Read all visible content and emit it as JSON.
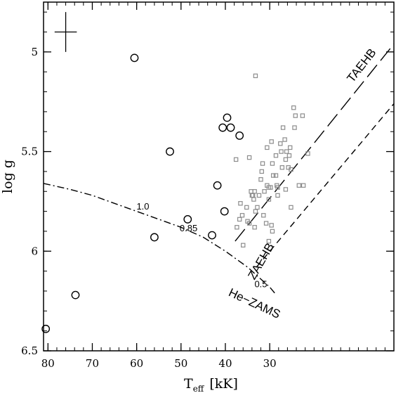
{
  "chart_data": {
    "type": "scatter",
    "title": "",
    "xlabel_main": "T",
    "xlabel_sub": "eff",
    "xlabel_unit": "[kK]",
    "ylabel": "log g",
    "xlim": [
      81,
      2
    ],
    "ylim": [
      6.5,
      4.75
    ],
    "x_ticks": [
      80,
      70,
      60,
      50,
      40,
      30
    ],
    "x_tick_labels": [
      "80",
      "70",
      "60",
      "50",
      "40",
      "30"
    ],
    "y_ticks": [
      5,
      5.5,
      6,
      6.5
    ],
    "y_tick_labels": [
      "5",
      "5.5",
      "6",
      "6.5"
    ],
    "y_minor_step": 0.1,
    "x_minor_step": 2,
    "error_bar": {
      "x": 76,
      "y": 4.9,
      "dx": 2.5,
      "dy": 0.1
    },
    "series": [
      {
        "marker": "open-circle",
        "points": [
          [
            80.5,
            6.39
          ],
          [
            73.8,
            6.22
          ],
          [
            60.5,
            5.03
          ],
          [
            56,
            5.93
          ],
          [
            52.5,
            5.5
          ],
          [
            48.5,
            5.84
          ],
          [
            43,
            5.92
          ],
          [
            41.8,
            5.67
          ],
          [
            40.6,
            5.38
          ],
          [
            40.2,
            5.8
          ],
          [
            39.6,
            5.33
          ],
          [
            38.8,
            5.38
          ],
          [
            36.8,
            5.42
          ]
        ]
      },
      {
        "marker": "open-square",
        "color": "#8c8c8c",
        "points": [
          [
            33.2,
            5.12
          ],
          [
            37.6,
            5.54
          ],
          [
            34.6,
            5.53
          ],
          [
            36,
            5.97
          ],
          [
            34.2,
            5.7
          ],
          [
            34,
            5.72
          ],
          [
            33.8,
            5.72
          ],
          [
            33.6,
            5.74
          ],
          [
            33.4,
            5.7
          ],
          [
            36.6,
            5.76
          ],
          [
            36.2,
            5.82
          ],
          [
            35.2,
            5.78
          ],
          [
            35,
            5.85
          ],
          [
            34.6,
            5.86
          ],
          [
            33.4,
            5.88
          ],
          [
            33.2,
            5.8
          ],
          [
            32.8,
            5.78
          ],
          [
            32.4,
            5.72
          ],
          [
            31.8,
            5.6
          ],
          [
            31.4,
            5.82
          ],
          [
            31.6,
            5.56
          ],
          [
            30.8,
            5.86
          ],
          [
            31.2,
            5.7
          ],
          [
            30.6,
            5.48
          ],
          [
            30.2,
            5.74
          ],
          [
            30.2,
            5.68
          ],
          [
            29.4,
            5.56
          ],
          [
            29.2,
            5.62
          ],
          [
            28.6,
            5.52
          ],
          [
            28.6,
            5.62
          ],
          [
            28.2,
            5.68
          ],
          [
            28.2,
            5.72
          ],
          [
            27.6,
            5.46
          ],
          [
            27.4,
            5.5
          ],
          [
            27.2,
            5.58
          ],
          [
            27,
            5.38
          ],
          [
            26.6,
            5.44
          ],
          [
            26.4,
            5.54
          ],
          [
            26.2,
            5.5
          ],
          [
            25.8,
            5.58
          ],
          [
            25.6,
            5.52
          ],
          [
            25.4,
            5.48
          ],
          [
            24.6,
            5.28
          ],
          [
            24.2,
            5.32
          ],
          [
            24.4,
            5.38
          ],
          [
            23.4,
            5.67
          ],
          [
            22.6,
            5.32
          ],
          [
            22.4,
            5.67
          ],
          [
            21.4,
            5.51
          ],
          [
            25.2,
            5.78
          ],
          [
            29.6,
            5.87
          ],
          [
            29.4,
            5.9
          ],
          [
            29.8,
            5.68
          ],
          [
            29.6,
            5.45
          ],
          [
            30.2,
            5.95
          ],
          [
            32,
            5.64
          ],
          [
            37.4,
            5.88
          ],
          [
            36.8,
            5.84
          ],
          [
            28.4,
            5.67
          ],
          [
            26.4,
            5.69
          ],
          [
            30.6,
            5.67
          ],
          [
            25.2,
            5.59
          ]
        ]
      }
    ],
    "lines": [
      {
        "name": "TAEHB",
        "style": "long-dash",
        "points": [
          [
            37.8,
            5.95
          ],
          [
            2,
            4.96
          ]
        ]
      },
      {
        "name": "ZAEHB",
        "style": "short-dash",
        "points": [
          [
            33,
            6.08
          ],
          [
            2,
            5.26
          ]
        ]
      },
      {
        "name": "He-ZAMS",
        "style": "dash-dot",
        "points": [
          [
            81,
            5.66
          ],
          [
            75,
            5.69
          ],
          [
            70,
            5.72
          ],
          [
            65,
            5.76
          ],
          [
            60,
            5.8
          ],
          [
            55,
            5.84
          ],
          [
            50,
            5.88
          ],
          [
            45,
            5.93
          ],
          [
            40,
            6.0
          ],
          [
            35,
            6.08
          ],
          [
            30,
            6.18
          ],
          [
            28.5,
            6.22
          ]
        ]
      }
    ],
    "annotations": [
      {
        "text": "TAEHB",
        "x": 8.6,
        "y": 5.08,
        "rotation": -52
      },
      {
        "text": "ZAEHB",
        "x": 31.2,
        "y": 6.06,
        "rotation": -60
      },
      {
        "text": "He−ZAMS",
        "x": 33.8,
        "y": 6.28,
        "rotation": 25
      },
      {
        "text": "1.0",
        "x": 58.6,
        "y": 5.79,
        "rotation": 0
      },
      {
        "text": "0.85",
        "x": 48.3,
        "y": 5.9,
        "rotation": 0
      },
      {
        "text": "0.5",
        "x": 32,
        "y": 6.18,
        "rotation": 0
      }
    ]
  }
}
